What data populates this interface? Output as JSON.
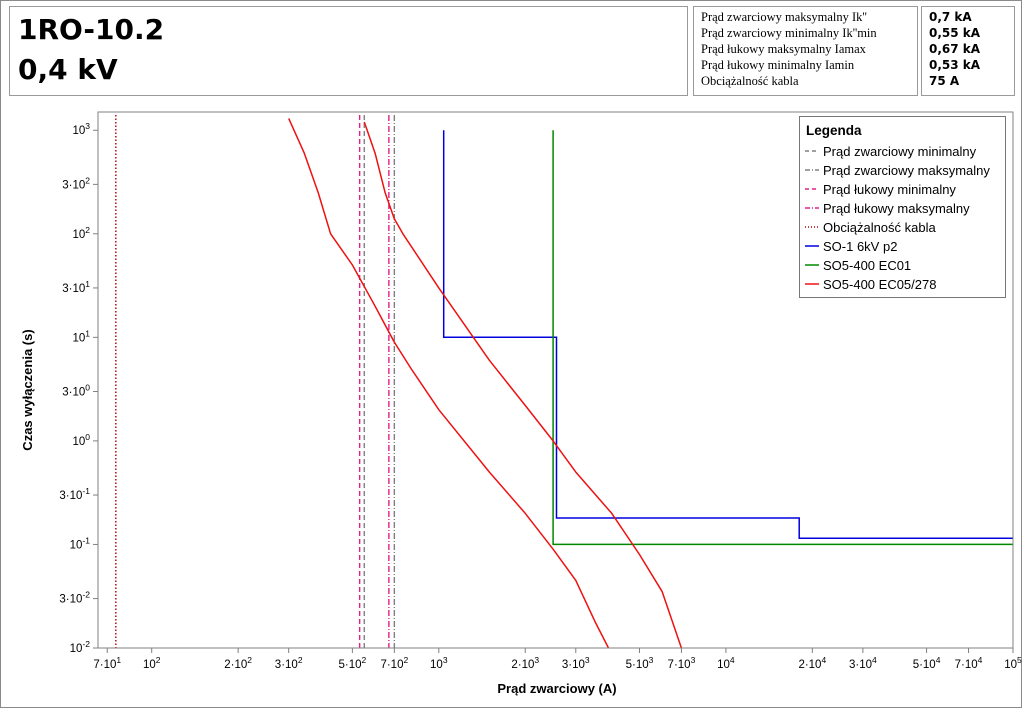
{
  "header": {
    "title_line1": "1RO-10.2",
    "title_line2": "0,4 kV"
  },
  "info": {
    "rows": [
      {
        "label": "Prąd zwarciowy maksymalny Ik''",
        "value": "0,7 kA"
      },
      {
        "label": "Prąd zwarciowy minimalny Ik''min",
        "value": "0,55 kA"
      },
      {
        "label": "Prąd łukowy maksymalny Iamax",
        "value": "0,67 kA"
      },
      {
        "label": "Prąd łukowy minimalny Iamin",
        "value": "0,53 kA"
      },
      {
        "label": "Obciążalność kabla",
        "value": "75 A"
      }
    ]
  },
  "chart_data": {
    "type": "line",
    "xscale": "log",
    "yscale": "log",
    "xlabel": "Prąd zwarciowy (A)",
    "ylabel": "Czas wyłączenia (s)",
    "xlim": [
      65,
      100000
    ],
    "ylim": [
      0.01,
      1500
    ],
    "x_ticks": [
      {
        "v": 70,
        "label": "7·10",
        "sup": "1"
      },
      {
        "v": 100,
        "label": "10",
        "sup": "2"
      },
      {
        "v": 200,
        "label": "2·10",
        "sup": "2"
      },
      {
        "v": 300,
        "label": "3·10",
        "sup": "2"
      },
      {
        "v": 500,
        "label": "5·10",
        "sup": "2"
      },
      {
        "v": 700,
        "label": "7·10",
        "sup": "2"
      },
      {
        "v": 1000,
        "label": "10",
        "sup": "3"
      },
      {
        "v": 2000,
        "label": "2·10",
        "sup": "3"
      },
      {
        "v": 3000,
        "label": "3·10",
        "sup": "3"
      },
      {
        "v": 5000,
        "label": "5·10",
        "sup": "3"
      },
      {
        "v": 7000,
        "label": "7·10",
        "sup": "3"
      },
      {
        "v": 10000,
        "label": "10",
        "sup": "4"
      },
      {
        "v": 20000,
        "label": "2·10",
        "sup": "4"
      },
      {
        "v": 30000,
        "label": "3·10",
        "sup": "4"
      },
      {
        "v": 50000,
        "label": "5·10",
        "sup": "4"
      },
      {
        "v": 70000,
        "label": "7·10",
        "sup": "4"
      },
      {
        "v": 100000,
        "label": "10",
        "sup": "5"
      }
    ],
    "y_ticks": [
      {
        "v": 1000,
        "label": "10",
        "sup": "3"
      },
      {
        "v": 300,
        "label": "3·10",
        "sup": "2"
      },
      {
        "v": 100,
        "label": "10",
        "sup": "2"
      },
      {
        "v": 30,
        "label": "3·10",
        "sup": "1"
      },
      {
        "v": 10,
        "label": "10",
        "sup": "1"
      },
      {
        "v": 3,
        "label": "3·10",
        "sup": "0"
      },
      {
        "v": 1,
        "label": "10",
        "sup": "0"
      },
      {
        "v": 0.3,
        "label": "3·10",
        "sup": "-1"
      },
      {
        "v": 0.1,
        "label": "10",
        "sup": "-1"
      },
      {
        "v": 0.03,
        "label": "3·10",
        "sup": "-2"
      },
      {
        "v": 0.01,
        "label": "10",
        "sup": "-2"
      }
    ],
    "vertical_lines": [
      {
        "name": "Prąd zwarciowy minimalny",
        "x": 550,
        "color": "#808080",
        "dash": "dash"
      },
      {
        "name": "Prąd zwarciowy maksymalny",
        "x": 700,
        "color": "#808080",
        "dash": "dashdot"
      },
      {
        "name": "Prąd łukowy minimalny",
        "x": 530,
        "color": "#e0208a",
        "dash": "dash"
      },
      {
        "name": "Prąd łukowy maksymalny",
        "x": 670,
        "color": "#e0208a",
        "dash": "dashdot"
      },
      {
        "name": "Obciążalność kabla",
        "x": 75,
        "color": "#b00000",
        "dash": "dot"
      }
    ],
    "series": [
      {
        "name": "SO-1 6kV p2",
        "color": "#0000e0",
        "points": [
          [
            1040,
            1000
          ],
          [
            1040,
            10
          ],
          [
            2570,
            10
          ],
          [
            2570,
            0.18
          ],
          [
            18000,
            0.18
          ],
          [
            18000,
            0.115
          ],
          [
            100000,
            0.115
          ]
        ]
      },
      {
        "name": "SO5-400 EC01",
        "color": "#008800",
        "points": [
          [
            2500,
            1000
          ],
          [
            2500,
            0.1
          ],
          [
            100000,
            0.1
          ]
        ]
      },
      {
        "name": "SO5-400 EC05/278",
        "color": "#ee1111",
        "curves": [
          [
            [
              300,
              1300
            ],
            [
              340,
              600
            ],
            [
              380,
              250
            ],
            [
              420,
              100
            ],
            [
              500,
              50
            ],
            [
              600,
              20
            ],
            [
              700,
              9
            ],
            [
              800,
              5
            ],
            [
              1000,
              2
            ],
            [
              1500,
              0.5
            ],
            [
              2000,
              0.2
            ],
            [
              2500,
              0.09
            ],
            [
              3000,
              0.045
            ],
            [
              3500,
              0.018
            ],
            [
              3900,
              0.01
            ]
          ],
          [
            [
              550,
              1200
            ],
            [
              600,
              600
            ],
            [
              650,
              250
            ],
            [
              700,
              140
            ],
            [
              750,
              100
            ],
            [
              1000,
              30
            ],
            [
              1500,
              6
            ],
            [
              2000,
              2.2
            ],
            [
              2500,
              1
            ],
            [
              3000,
              0.5
            ],
            [
              4000,
              0.2
            ],
            [
              5000,
              0.08
            ],
            [
              6000,
              0.035
            ],
            [
              7000,
              0.01
            ]
          ]
        ]
      }
    ],
    "legend": {
      "title": "Legenda",
      "position": "top-right"
    }
  }
}
